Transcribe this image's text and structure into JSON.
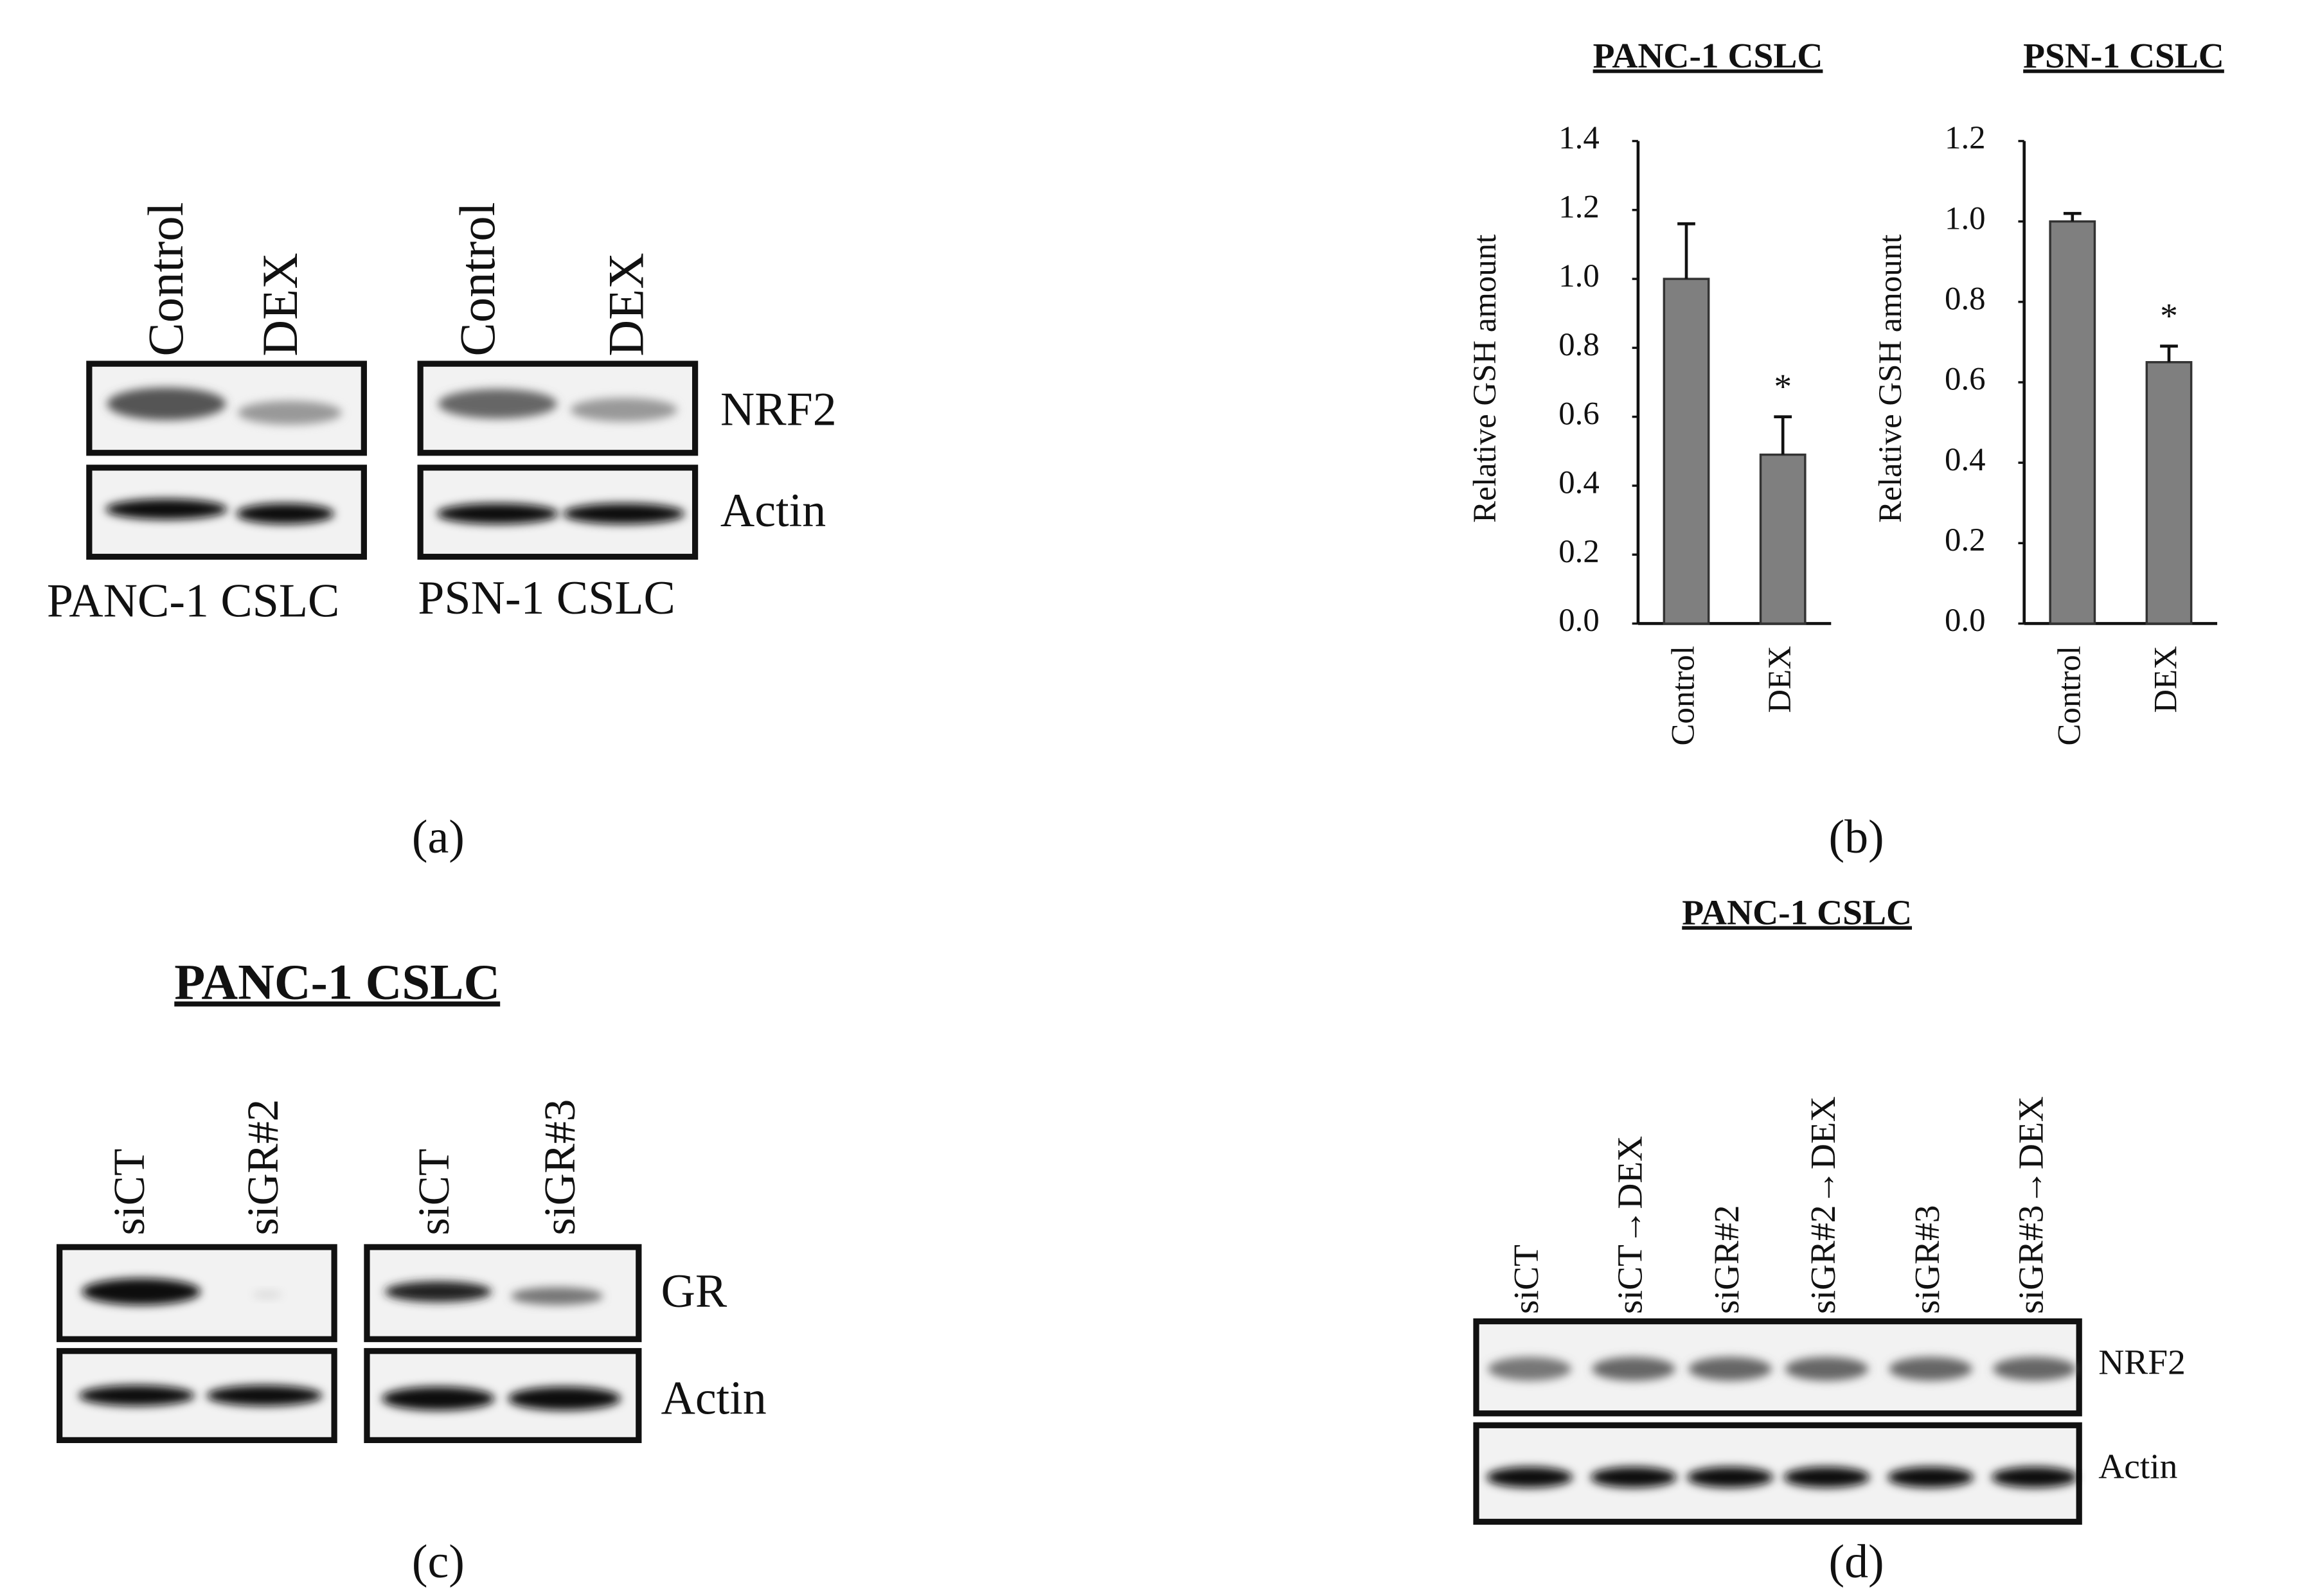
{
  "panel_a": {
    "lanes_left": [
      "Control",
      "DEX"
    ],
    "lanes_right": [
      "Control",
      "DEX"
    ],
    "blots": [
      "NRF2",
      "Actin"
    ],
    "cell_lines": [
      "PANC-1 CSLC",
      "PSN-1 CSLC"
    ],
    "label": "(a)"
  },
  "chart_data": [
    {
      "type": "bar",
      "title": "PANC-1 CSLC",
      "y_label": "Relative GSH amount",
      "categories": [
        "Control",
        "DEX"
      ],
      "series": [
        {
          "color": "#7f7f7f",
          "values": [
            1.0,
            0.49
          ],
          "errors": [
            0.16,
            0.11
          ]
        }
      ],
      "annotations": [
        null,
        "*"
      ],
      "ylim": [
        0,
        1.4
      ],
      "yticks": [
        {
          "value": 0,
          "label": "0.0"
        },
        0.2,
        0.4,
        0.6,
        0.8,
        {
          "value": 1,
          "label": "1.0"
        },
        1.2,
        1.4
      ]
    },
    {
      "type": "bar",
      "title": "PSN-1 CSLC",
      "y_label": "Relative GSH amount",
      "categories": [
        "Control",
        "DEX"
      ],
      "series": [
        {
          "color": "#7f7f7f",
          "values": [
            1.0,
            0.65
          ],
          "errors": [
            0.02,
            0.04
          ]
        }
      ],
      "annotations": [
        null,
        "*"
      ],
      "ylim": [
        0,
        1.2
      ],
      "yticks": [
        {
          "value": 0,
          "label": "0.0"
        },
        0.2,
        0.4,
        0.6,
        0.8,
        {
          "value": 1,
          "label": "1.0"
        },
        1.2
      ]
    }
  ],
  "panel_b": {
    "label": "(b)"
  },
  "panel_c": {
    "title": "PANC-1 CSLC",
    "lanes_left": [
      "siCT",
      "siGR#2"
    ],
    "lanes_right": [
      "siCT",
      "siGR#3"
    ],
    "blots": [
      "GR",
      "Actin"
    ],
    "label": "(c)"
  },
  "panel_d": {
    "title": "PANC-1 CSLC",
    "lanes": [
      "siCT",
      "siCT→DEX",
      "siGR#2",
      "siGR#2→DEX",
      "siGR#3",
      "siGR#3→DEX"
    ],
    "blots": [
      "NRF2",
      "Actin"
    ],
    "label": "(d)"
  }
}
